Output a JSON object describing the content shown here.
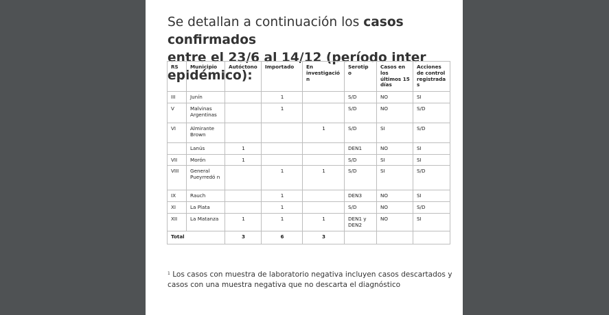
{
  "heading": {
    "prefix": "Se detallan a continuación los ",
    "bold_1": "casos confirmados",
    "bold_2": "entre el 23/6 al 14/12 (período inter epidémico):"
  },
  "table": {
    "headers": [
      "RS",
      "Municipio",
      "Autóctono",
      "Importado",
      "En investigació n",
      "Serotip o",
      "Casos en los últimos 15 días",
      "Acciones de control registrada s"
    ],
    "rows": [
      [
        "III",
        "Junín",
        "",
        "1",
        "",
        "S/D",
        "NO",
        "SI"
      ],
      [
        "V",
        "Malvinas Argentinas",
        "",
        "1",
        "",
        "S/D",
        "NO",
        "S/D"
      ],
      [
        "VI",
        "Almirante Brown",
        "",
        "",
        "1",
        "S/D",
        "SI",
        "S/D"
      ],
      [
        "",
        "Lanús",
        "1",
        "",
        "",
        "DEN1",
        "NO",
        "SI"
      ],
      [
        "VII",
        "Morón",
        "1",
        "",
        "",
        "S/D",
        "SI",
        "SI"
      ],
      [
        "VIII",
        "General Pueyrredó n",
        "",
        "1",
        "1",
        "S/D",
        "SI",
        "S/D"
      ],
      [
        "IX",
        "Rauch",
        "",
        "1",
        "",
        "DEN3",
        "NO",
        "SI"
      ],
      [
        "XI",
        "La Plata",
        "",
        "1",
        "",
        "S/D",
        "NO",
        "S/D"
      ],
      [
        "XII",
        "La Matanza",
        "1",
        "1",
        "1",
        "DEN1 y DEN2",
        "NO",
        "SI"
      ]
    ],
    "total": [
      "Total",
      "",
      "3",
      "6",
      "3",
      "",
      "",
      ""
    ]
  },
  "footnote": {
    "marker": "1",
    "text": "Los casos con muestra de laboratorio negativa incluyen casos descartados y casos con una muestra negativa que no descarta el diagnóstico"
  }
}
